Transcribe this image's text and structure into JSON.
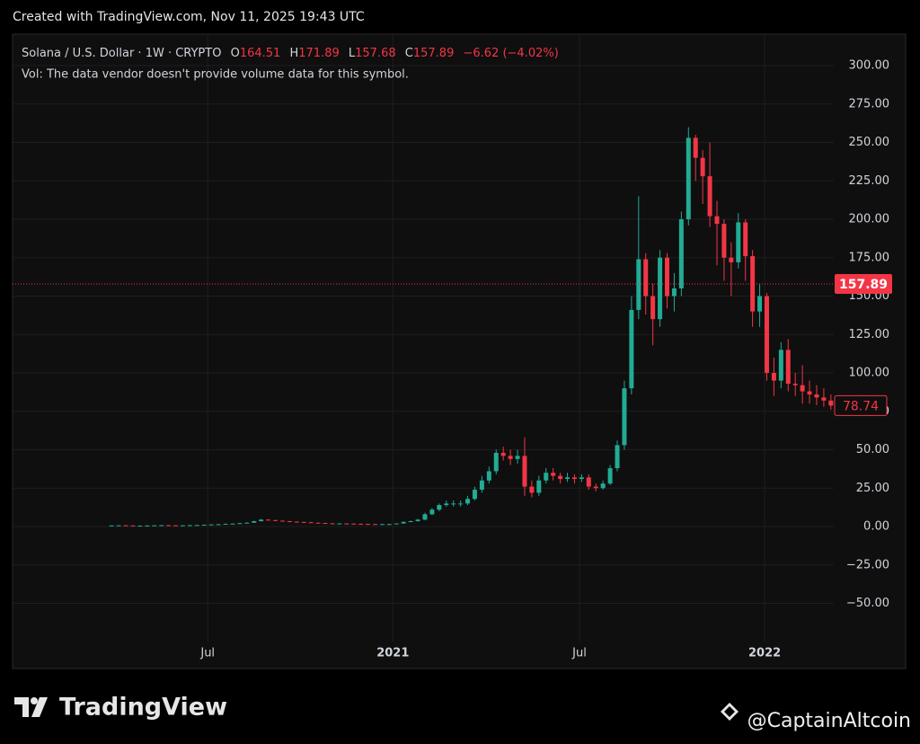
{
  "created_note": "Created with TradingView.com, Nov 11, 2025 19:43 UTC",
  "footer": {
    "brand": "TradingView",
    "watermark": "@CaptainAltcoin"
  },
  "chart_data": {
    "type": "candlestick",
    "symbol": "Solana / U.S. Dollar · 1W · CRYPTO",
    "ohlc_labels": [
      "O",
      "H",
      "L",
      "C"
    ],
    "ohlc_values": [
      164.51,
      171.89,
      157.68,
      157.89
    ],
    "change": "−6.62 (−4.02%)",
    "volume_note": "Vol: The data vendor doesn't provide volume data for this symbol.",
    "up_color": "#22ab94",
    "down_color": "#f23645",
    "grid": true,
    "x": [
      0,
      1,
      2,
      3,
      4,
      5,
      6,
      7,
      8,
      9,
      10,
      11,
      12,
      13,
      14,
      15,
      16,
      17,
      18,
      19,
      20,
      21,
      22,
      23,
      24,
      25,
      26,
      27,
      28,
      29,
      30,
      31,
      32,
      33,
      34,
      35,
      36,
      37,
      38,
      39,
      40,
      41,
      42,
      43,
      44,
      45,
      46,
      47,
      48,
      49,
      50,
      51,
      52,
      53,
      54,
      55,
      56,
      57,
      58,
      59,
      60,
      61,
      62,
      63,
      64,
      65,
      66,
      67,
      68,
      69,
      70,
      71,
      72,
      73,
      74,
      75,
      76,
      77,
      78,
      79,
      80,
      81,
      82,
      83,
      84,
      85,
      86,
      87,
      88,
      89,
      90,
      91,
      92,
      93,
      94,
      95,
      96,
      97,
      98,
      99,
      100,
      101
    ],
    "open": [
      0.6,
      0.7,
      0.8,
      0.7,
      0.6,
      0.6,
      0.7,
      0.8,
      0.9,
      0.8,
      0.7,
      0.8,
      0.9,
      1.0,
      1.2,
      1.4,
      1.5,
      1.8,
      1.9,
      2.2,
      2.5,
      3.5,
      4.5,
      4.2,
      3.8,
      3.5,
      3.2,
      3.0,
      2.8,
      2.5,
      2.3,
      2.1,
      2.0,
      2.0,
      1.9,
      1.8,
      1.7,
      1.6,
      1.5,
      1.6,
      1.6,
      2.0,
      3.0,
      3.5,
      4.5,
      8,
      11,
      14,
      15,
      15,
      15,
      18,
      24,
      30,
      36,
      48,
      46,
      44,
      46,
      26,
      22,
      30,
      35,
      33,
      31,
      32,
      31,
      32,
      26,
      25,
      28,
      38,
      53,
      90,
      141,
      174,
      150,
      135,
      175,
      150,
      155,
      200,
      253,
      240,
      228,
      202,
      197,
      175,
      172,
      198,
      176,
      140,
      150,
      100,
      95,
      115,
      93,
      92,
      88,
      86,
      84,
      82
    ],
    "high": [
      0.8,
      0.9,
      0.9,
      0.8,
      0.7,
      0.8,
      0.9,
      1.0,
      1.0,
      0.9,
      0.9,
      1.0,
      1.1,
      1.3,
      1.5,
      1.7,
      1.9,
      2.1,
      2.4,
      2.7,
      3.8,
      4.9,
      4.8,
      4.4,
      4.0,
      3.7,
      3.4,
      3.2,
      3.0,
      2.7,
      2.5,
      2.3,
      2.2,
      2.2,
      2.1,
      2.0,
      1.9,
      1.8,
      1.8,
      1.8,
      2.2,
      3.4,
      3.9,
      5.0,
      9,
      12,
      15,
      17,
      17,
      17,
      20,
      26,
      33,
      39,
      50,
      52,
      50,
      50,
      58,
      30,
      33,
      38,
      38,
      35,
      35,
      34,
      34,
      34,
      28,
      30,
      40,
      56,
      95,
      150,
      215,
      178,
      158,
      180,
      178,
      165,
      205,
      260,
      255,
      245,
      250,
      212,
      200,
      185,
      204,
      200,
      180,
      158,
      152,
      110,
      120,
      122,
      100,
      105,
      95,
      92,
      90,
      86
    ],
    "low": [
      0.5,
      0.6,
      0.6,
      0.5,
      0.5,
      0.5,
      0.6,
      0.7,
      0.7,
      0.6,
      0.6,
      0.7,
      0.8,
      0.9,
      1.1,
      1.3,
      1.4,
      1.7,
      1.8,
      2.0,
      2.4,
      3.3,
      3.9,
      3.5,
      3.2,
      2.9,
      2.8,
      2.6,
      2.3,
      2.1,
      1.9,
      1.8,
      1.8,
      1.7,
      1.6,
      1.5,
      1.4,
      1.3,
      1.4,
      1.4,
      1.5,
      1.9,
      2.8,
      3.3,
      4.2,
      7.5,
      10,
      13,
      13,
      13,
      14,
      17,
      22,
      28,
      34,
      43,
      40,
      41,
      20,
      19,
      20,
      28,
      30,
      28,
      29,
      28,
      29,
      24,
      23,
      24,
      27,
      36,
      50,
      86,
      135,
      138,
      118,
      130,
      142,
      140,
      150,
      196,
      225,
      210,
      195,
      170,
      160,
      150,
      168,
      160,
      130,
      130,
      95,
      85,
      90,
      88,
      85,
      80,
      80,
      79,
      78,
      76
    ],
    "close": [
      0.7,
      0.8,
      0.7,
      0.6,
      0.6,
      0.7,
      0.8,
      0.9,
      0.8,
      0.7,
      0.8,
      0.9,
      1.0,
      1.2,
      1.4,
      1.5,
      1.8,
      1.9,
      2.2,
      2.5,
      3.5,
      4.5,
      4.2,
      3.8,
      3.5,
      3.2,
      3.0,
      2.8,
      2.5,
      2.3,
      2.1,
      2.0,
      2.0,
      1.9,
      1.8,
      1.7,
      1.6,
      1.5,
      1.6,
      1.6,
      2.0,
      3.0,
      3.5,
      4.5,
      8,
      11,
      14,
      15,
      15,
      15,
      18,
      24,
      30,
      36,
      48,
      46,
      44,
      46,
      26,
      22,
      30,
      35,
      33,
      31,
      32,
      31,
      32,
      26,
      25,
      28,
      38,
      53,
      90,
      141,
      174,
      150,
      135,
      175,
      150,
      155,
      200,
      253,
      240,
      228,
      202,
      197,
      175,
      172,
      198,
      176,
      140,
      150,
      100,
      95,
      115,
      93,
      92,
      88,
      86,
      84,
      82,
      78.74
    ],
    "xlim": [
      -13.9,
      101.4
    ],
    "xticks": [
      {
        "value": 13.5,
        "label": "Jul"
      },
      {
        "value": 39.5,
        "label": "2021"
      },
      {
        "value": 65.7,
        "label": "Jul"
      },
      {
        "value": 91.7,
        "label": "2022"
      }
    ],
    "ylim": [
      -92.4,
      320.5
    ],
    "yticks": [
      {
        "value": 300,
        "label": "300.00"
      },
      {
        "value": 275,
        "label": "275.00"
      },
      {
        "value": 250,
        "label": "250.00"
      },
      {
        "value": 225,
        "label": "225.00"
      },
      {
        "value": 200,
        "label": "200.00"
      },
      {
        "value": 175,
        "label": "175.00"
      },
      {
        "value": 150,
        "label": "150.00"
      },
      {
        "value": 125,
        "label": "125.00"
      },
      {
        "value": 100,
        "label": "100.00"
      },
      {
        "value": 75,
        "label": "75.00"
      },
      {
        "value": 50,
        "label": "50.00"
      },
      {
        "value": 25,
        "label": "25.00"
      },
      {
        "value": 0,
        "label": "0.00"
      },
      {
        "value": -25,
        "label": "−25.00"
      },
      {
        "value": -50,
        "label": "−50.00"
      }
    ]
  }
}
